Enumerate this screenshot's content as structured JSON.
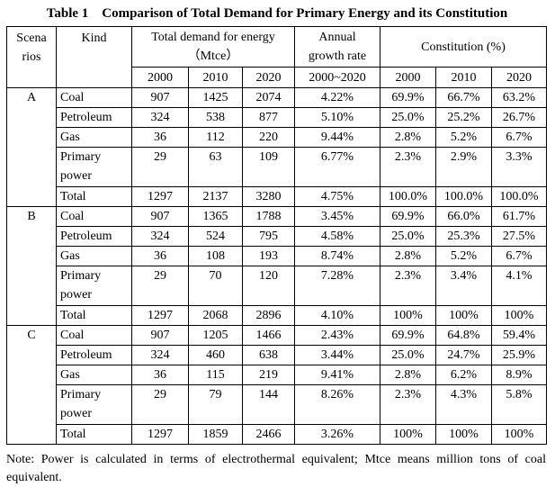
{
  "title": {
    "label": "Table 1",
    "caption": "Comparison of Total Demand for Primary Energy and its Constitution"
  },
  "table": {
    "headers": {
      "scenarios": "Scena\nrios",
      "kind": "Kind",
      "demand_group": "Total demand for energy\n（Mtce）",
      "growth_group": "Annual\ngrowth rate",
      "constitution_group": "Constitution (%)",
      "demand_years": [
        "2000",
        "2010",
        "2020"
      ],
      "growth_period": "2000~2020",
      "constitution_years": [
        "2000",
        "2010",
        "2020"
      ]
    },
    "scenarios": [
      {
        "name": "A",
        "rows": [
          {
            "kind": "Coal",
            "demand": [
              "907",
              "1425",
              "2074"
            ],
            "growth": "4.22%",
            "constitution": [
              "69.9%",
              "66.7%",
              "63.2%"
            ]
          },
          {
            "kind": "Petroleum",
            "demand": [
              "324",
              "538",
              "877"
            ],
            "growth": "5.10%",
            "constitution": [
              "25.0%",
              "25.2%",
              "26.7%"
            ]
          },
          {
            "kind": "Gas",
            "demand": [
              "36",
              "112",
              "220"
            ],
            "growth": "9.44%",
            "constitution": [
              "2.8%",
              "5.2%",
              "6.7%"
            ]
          },
          {
            "kind": "Primary power",
            "demand": [
              "29",
              "63",
              "109"
            ],
            "growth": "6.77%",
            "constitution": [
              "2.3%",
              "2.9%",
              "3.3%"
            ]
          },
          {
            "kind": "Total",
            "demand": [
              "1297",
              "2137",
              "3280"
            ],
            "growth": "4.75%",
            "constitution": [
              "100.0%",
              "100.0%",
              "100.0%"
            ]
          }
        ]
      },
      {
        "name": "B",
        "rows": [
          {
            "kind": "Coal",
            "demand": [
              "907",
              "1365",
              "1788"
            ],
            "growth": "3.45%",
            "constitution": [
              "69.9%",
              "66.0%",
              "61.7%"
            ]
          },
          {
            "kind": "Petroleum",
            "demand": [
              "324",
              "524",
              "795"
            ],
            "growth": "4.58%",
            "constitution": [
              "25.0%",
              "25.3%",
              "27.5%"
            ]
          },
          {
            "kind": "Gas",
            "demand": [
              "36",
              "108",
              "193"
            ],
            "growth": "8.74%",
            "constitution": [
              "2.8%",
              "5.2%",
              "6.7%"
            ]
          },
          {
            "kind": "Primary power",
            "demand": [
              "29",
              "70",
              "120"
            ],
            "growth": "7.28%",
            "constitution": [
              "2.3%",
              "3.4%",
              "4.1%"
            ]
          },
          {
            "kind": "Total",
            "demand": [
              "1297",
              "2068",
              "2896"
            ],
            "growth": "4.10%",
            "constitution": [
              "100%",
              "100%",
              "100%"
            ]
          }
        ]
      },
      {
        "name": "C",
        "rows": [
          {
            "kind": "Coal",
            "demand": [
              "907",
              "1205",
              "1466"
            ],
            "growth": "2.43%",
            "constitution": [
              "69.9%",
              "64.8%",
              "59.4%"
            ]
          },
          {
            "kind": "Petroleum",
            "demand": [
              "324",
              "460",
              "638"
            ],
            "growth": "3.44%",
            "constitution": [
              "25.0%",
              "24.7%",
              "25.9%"
            ]
          },
          {
            "kind": "Gas",
            "demand": [
              "36",
              "115",
              "219"
            ],
            "growth": "9.41%",
            "constitution": [
              "2.8%",
              "6.2%",
              "8.9%"
            ]
          },
          {
            "kind": "Primary power",
            "demand": [
              "29",
              "79",
              "144"
            ],
            "growth": "8.26%",
            "constitution": [
              "2.3%",
              "4.3%",
              "5.8%"
            ]
          },
          {
            "kind": "Total",
            "demand": [
              "1297",
              "1859",
              "2466"
            ],
            "growth": "3.26%",
            "constitution": [
              "100%",
              "100%",
              "100%"
            ]
          }
        ]
      }
    ]
  },
  "note": "Note: Power is calculated in terms of electrothermal equivalent; Mtce means million tons of coal equivalent."
}
